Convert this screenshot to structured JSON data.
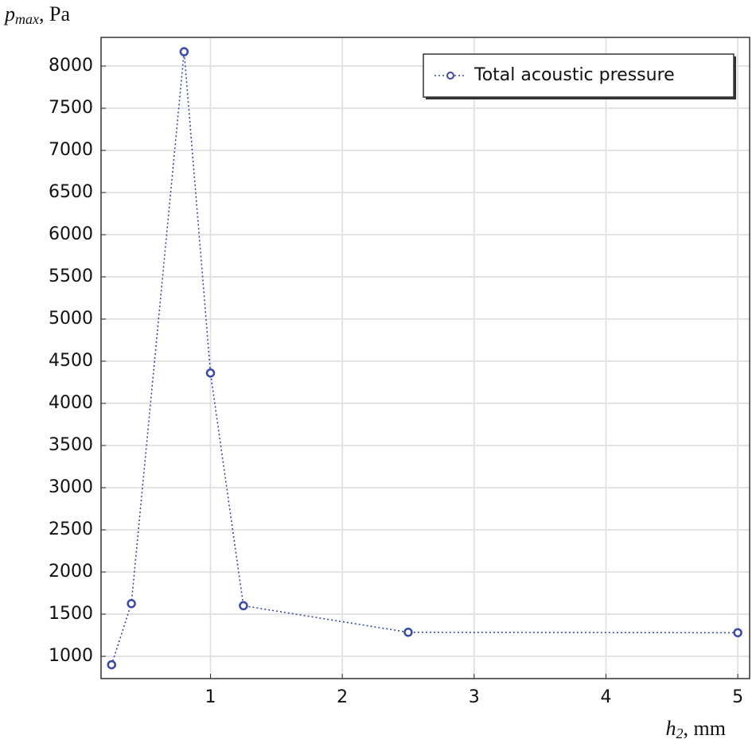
{
  "chart_data": {
    "type": "line",
    "ylabel": {
      "symbol": "p",
      "subscript": "max",
      "unit": ", Pa"
    },
    "xlabel": {
      "symbol": "h",
      "subscript": "2",
      "unit": ", mm"
    },
    "x": [
      0.25,
      0.4,
      0.8,
      1.0,
      1.25,
      2.5,
      5.0
    ],
    "series": [
      {
        "name": "Total acoustic pressure",
        "color": "#3a48a8",
        "values": [
          900,
          1625,
          8170,
          4360,
          1600,
          1285,
          1280
        ]
      }
    ],
    "xlim": [
      0.17,
      5.09
    ],
    "ylim": [
      736,
      8340
    ],
    "xticks": [
      1,
      2,
      3,
      4,
      5
    ],
    "yticks": [
      1000,
      1500,
      2000,
      2500,
      3000,
      3500,
      4000,
      4500,
      5000,
      5500,
      6000,
      6500,
      7000,
      7500,
      8000
    ],
    "grid": true,
    "legend": "top-right"
  }
}
